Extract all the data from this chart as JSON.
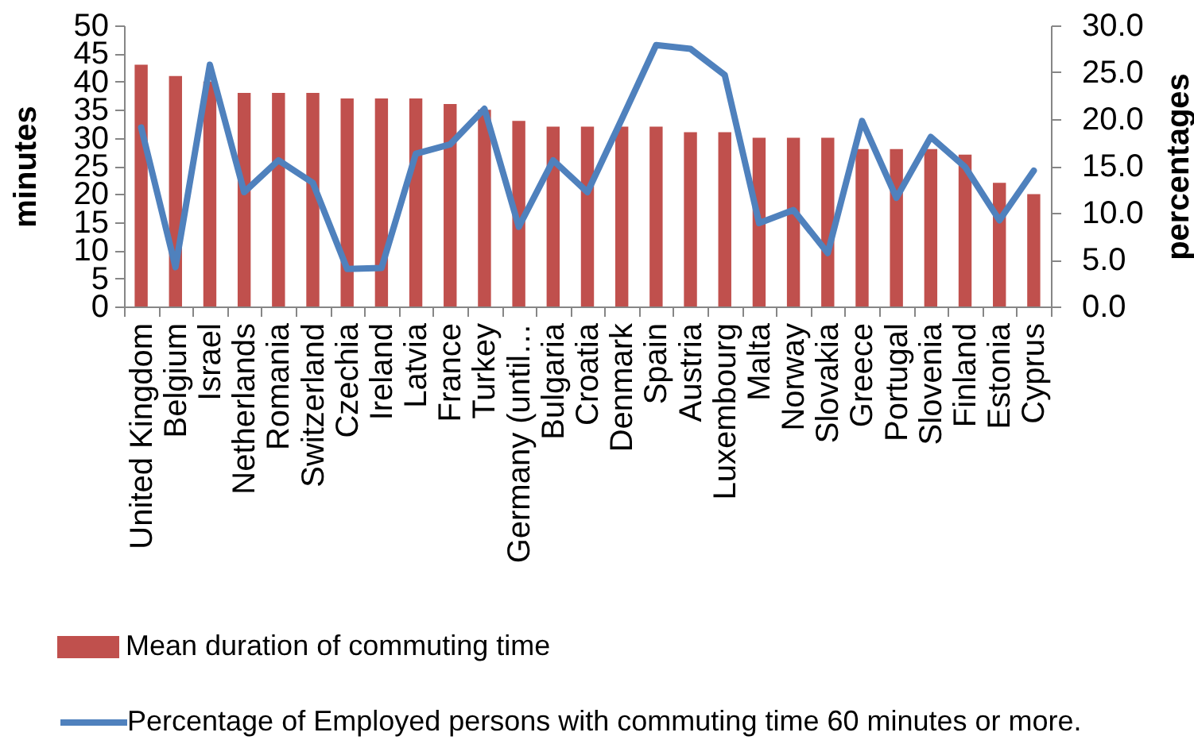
{
  "chart_data": {
    "type": "bar",
    "ylabel": "minutes",
    "y2label": "percentages",
    "categories": [
      "United Kingdom",
      "Belgium",
      "Israel",
      "Netherlands",
      "Romania",
      "Switzerland",
      "Czechia",
      "Ireland",
      "Latvia",
      "France",
      "Turkey",
      "Germany (until…",
      "Bulgaria",
      "Croatia",
      "Denmark",
      "Spain",
      "Austria",
      "Luxembourg",
      "Malta",
      "Norway",
      "Slovakia",
      "Greece",
      "Portugal",
      "Slovenia",
      "Finland",
      "Estonia",
      "Cyprus"
    ],
    "series": [
      {
        "name": "Mean duration of commuting time",
        "color": "#c0504d",
        "values": [
          43,
          41,
          40,
          38,
          38,
          38,
          37,
          37,
          37,
          36,
          35,
          33,
          32,
          32,
          32,
          32,
          31,
          31,
          30,
          30,
          30,
          28,
          28,
          28,
          27,
          22,
          20
        ]
      },
      {
        "name": "Percentage of Employed persons with commuting time 60 minutes or more.",
        "type": "line",
        "axis": "y2",
        "color": "#4f81bd",
        "values": [
          19.1,
          4.2,
          25.8,
          12.2,
          15.6,
          13.2,
          4.0,
          4.1,
          16.3,
          17.3,
          21.1,
          8.5,
          15.6,
          12.2,
          20.0,
          27.9,
          27.5,
          24.7,
          8.9,
          10.3,
          5.7,
          19.8,
          11.6,
          18.1,
          14.9,
          9.2,
          14.5
        ]
      }
    ],
    "ylim": [
      0,
      50
    ],
    "yticks": [
      0,
      5,
      10,
      15,
      20,
      25,
      30,
      35,
      40,
      45,
      50
    ],
    "y2lim": [
      0,
      30
    ],
    "y2ticks": [
      {
        "value": 0,
        "label": "0.0"
      },
      {
        "value": 5,
        "label": "5.0"
      },
      {
        "value": 10,
        "label": "10.0"
      },
      {
        "value": 15,
        "label": "15.0"
      },
      {
        "value": 20,
        "label": "20.0"
      },
      {
        "value": 25,
        "label": "25.0"
      },
      {
        "value": 30,
        "label": "30.0"
      }
    ],
    "legend": "bottom"
  }
}
